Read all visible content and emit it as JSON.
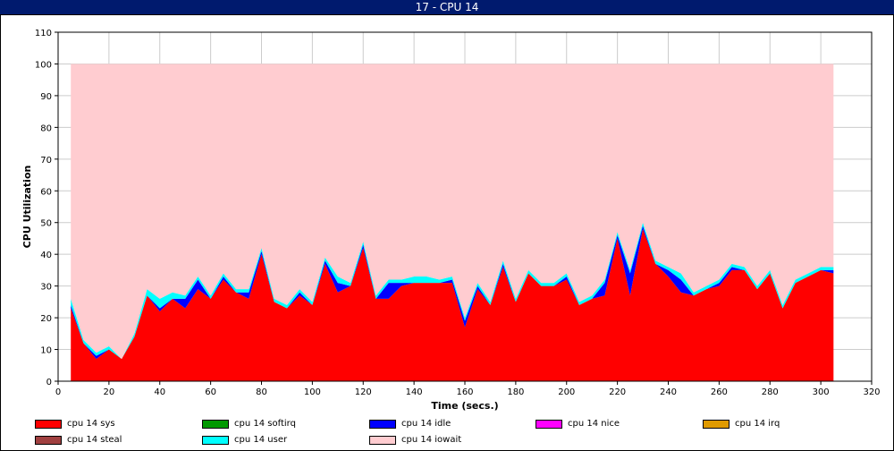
{
  "window": {
    "title": "17 - CPU 14"
  },
  "chart_data": {
    "type": "area",
    "title": "17 - CPU 14",
    "xlabel": "Time (secs.)",
    "ylabel": "CPU Utilization",
    "xlim": [
      0,
      320
    ],
    "ylim": [
      0,
      110
    ],
    "x_ticks": [
      0,
      20,
      40,
      60,
      80,
      100,
      120,
      140,
      160,
      180,
      200,
      220,
      240,
      260,
      280,
      300,
      320
    ],
    "y_ticks": [
      0,
      10,
      20,
      30,
      40,
      50,
      60,
      70,
      80,
      90,
      100,
      110
    ],
    "grid": true,
    "stacked": true,
    "x": [
      5,
      10,
      15,
      20,
      25,
      30,
      35,
      40,
      45,
      50,
      55,
      60,
      65,
      70,
      75,
      80,
      85,
      90,
      95,
      100,
      105,
      110,
      115,
      120,
      125,
      130,
      135,
      140,
      145,
      150,
      155,
      160,
      165,
      170,
      175,
      180,
      185,
      190,
      195,
      200,
      205,
      210,
      215,
      220,
      225,
      230,
      235,
      240,
      245,
      250,
      255,
      260,
      265,
      270,
      275,
      280,
      285,
      290,
      295,
      300,
      305
    ],
    "series": [
      {
        "name": "cpu 14 sys",
        "color": "#ff0000",
        "values": [
          23,
          12,
          7,
          10,
          7,
          14,
          27,
          22,
          26,
          23,
          29,
          26,
          32,
          28,
          26,
          40,
          25,
          23,
          27,
          24,
          37,
          28,
          30,
          42,
          26,
          26,
          30,
          31,
          31,
          31,
          31,
          17,
          29,
          24,
          36,
          25,
          34,
          30,
          30,
          32,
          24,
          26,
          27,
          45,
          27,
          48,
          37,
          33,
          28,
          27,
          29,
          30,
          35,
          35,
          29,
          34,
          23,
          31,
          33,
          35,
          34
        ]
      },
      {
        "name": "cpu 14 softirq",
        "color": "#009900",
        "values": [
          0,
          0,
          0,
          0,
          0,
          0,
          0,
          0,
          0,
          0,
          0,
          0,
          0,
          0,
          0,
          0,
          0,
          0,
          0,
          0,
          0,
          0,
          0,
          0,
          0,
          0,
          0,
          0,
          0,
          0,
          0,
          0,
          0,
          0,
          0,
          0,
          0,
          0,
          0,
          0,
          0,
          0,
          0,
          0,
          0,
          0,
          0,
          0,
          0,
          0,
          0,
          0,
          0,
          0,
          0,
          0,
          0,
          0,
          0,
          0,
          0
        ]
      },
      {
        "name": "cpu 14 idle",
        "color": "#0000ff",
        "values": [
          1,
          0,
          1,
          0,
          0,
          0,
          0,
          1,
          0,
          3,
          3,
          0,
          1,
          0,
          2,
          1,
          0,
          0,
          1,
          0,
          1,
          3,
          0,
          1,
          0,
          5,
          1,
          0,
          0,
          0,
          1,
          2,
          1,
          0,
          1,
          0,
          0,
          0,
          0,
          1,
          0,
          0,
          4,
          1,
          7,
          1,
          0,
          2,
          4,
          0,
          0,
          1,
          1,
          0,
          0,
          0,
          0,
          0,
          0,
          0,
          1
        ]
      },
      {
        "name": "cpu 14 nice",
        "color": "#ff00ff",
        "values": [
          0,
          0,
          0,
          0,
          0,
          0,
          0,
          0,
          0,
          0,
          0,
          0,
          0,
          0,
          0,
          0,
          0,
          0,
          0,
          0,
          0,
          0,
          0,
          0,
          0,
          0,
          0,
          0,
          0,
          0,
          0,
          0,
          0,
          0,
          0,
          0,
          0,
          0,
          0,
          0,
          0,
          0,
          0,
          0,
          0,
          0,
          0,
          0,
          0,
          0,
          0,
          0,
          0,
          0,
          0,
          0,
          0,
          0,
          0,
          0,
          0
        ]
      },
      {
        "name": "cpu 14 irq",
        "color": "#e09a00",
        "values": [
          0,
          0,
          0,
          0,
          0,
          0,
          0,
          0,
          0,
          0,
          0,
          0,
          0,
          0,
          0,
          0,
          0,
          0,
          0,
          0,
          0,
          0,
          0,
          0,
          0,
          0,
          0,
          0,
          0,
          0,
          0,
          0,
          0,
          0,
          0,
          0,
          0,
          0,
          0,
          0,
          0,
          0,
          0,
          0,
          0,
          0,
          0,
          0,
          0,
          0,
          0,
          0,
          0,
          0,
          0,
          0,
          0,
          0,
          0,
          0,
          0
        ]
      },
      {
        "name": "cpu 14 steal",
        "color": "#a04040",
        "values": [
          0,
          0,
          0,
          0,
          0,
          0,
          0,
          0,
          0,
          0,
          0,
          0,
          0,
          0,
          0,
          0,
          0,
          0,
          0,
          0,
          0,
          0,
          0,
          0,
          0,
          0,
          0,
          0,
          0,
          0,
          0,
          0,
          0,
          0,
          0,
          0,
          0,
          0,
          0,
          0,
          0,
          0,
          0,
          0,
          0,
          0,
          0,
          0,
          0,
          0,
          0,
          0,
          0,
          0,
          0,
          0,
          0,
          0,
          0,
          0,
          0
        ]
      },
      {
        "name": "cpu 14 user",
        "color": "#00ffff",
        "values": [
          2,
          1,
          1,
          1,
          0,
          1,
          2,
          3,
          2,
          1,
          1,
          1,
          1,
          1,
          1,
          1,
          1,
          1,
          1,
          1,
          1,
          2,
          1,
          1,
          1,
          1,
          1,
          2,
          2,
          1,
          1,
          1,
          1,
          1,
          1,
          1,
          1,
          1,
          1,
          1,
          1,
          1,
          1,
          1,
          1,
          1,
          1,
          1,
          2,
          1,
          1,
          1,
          1,
          1,
          1,
          1,
          1,
          1,
          1,
          1,
          1
        ]
      },
      {
        "name": "cpu 14 iowait",
        "color": "#ffccd0",
        "values": [
          74,
          87,
          91,
          89,
          93,
          85,
          71,
          74,
          72,
          73,
          67,
          73,
          66,
          71,
          71,
          58,
          74,
          76,
          71,
          75,
          61,
          67,
          69,
          56,
          73,
          68,
          68,
          67,
          67,
          68,
          67,
          80,
          69,
          75,
          62,
          74,
          65,
          69,
          69,
          66,
          75,
          73,
          68,
          53,
          65,
          50,
          62,
          64,
          66,
          72,
          70,
          68,
          63,
          64,
          70,
          65,
          76,
          68,
          66,
          64,
          64
        ]
      }
    ],
    "legend": {
      "placement": "bottom",
      "entries": [
        "cpu 14 sys",
        "cpu 14 softirq",
        "cpu 14 idle",
        "cpu 14 nice",
        "cpu 14 irq",
        "cpu 14 steal",
        "cpu 14 user",
        "cpu 14 iowait"
      ]
    }
  }
}
